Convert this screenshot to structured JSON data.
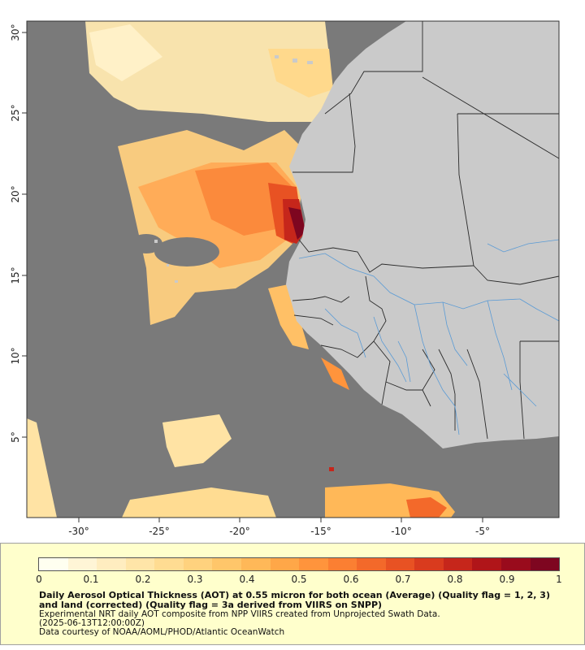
{
  "map": {
    "longitude_ticks": [
      "-30°",
      "-25°",
      "-20°",
      "-15°",
      "-10°",
      "-5°"
    ],
    "latitude_ticks": [
      "30°",
      "25°",
      "20°",
      "15°",
      "10°",
      "5°"
    ],
    "colors": {
      "ocean_no_data": "#7a7a7a",
      "land": "#cacaca",
      "border": "#2a2a2a",
      "river": "#5b9bd5"
    }
  },
  "legend": {
    "ticks": [
      "0",
      "0.1",
      "0.2",
      "0.3",
      "0.4",
      "0.5",
      "0.6",
      "0.7",
      "0.8",
      "0.9",
      "1"
    ],
    "colormap": [
      "#fffff0",
      "#fff5d6",
      "#ffedc0",
      "#ffe5a8",
      "#ffdc92",
      "#ffd27e",
      "#ffc66a",
      "#ffb858",
      "#ffa748",
      "#ff943c",
      "#fb7f32",
      "#f3692a",
      "#e85223",
      "#d93b1e",
      "#c6261b",
      "#b01519",
      "#990b1c",
      "#7e0620"
    ],
    "background": "#ffffcc"
  },
  "caption": {
    "title": "Daily Aerosol Optical Thickness (AOT) at 0.55 micron for both ocean (Average) (Quality flag = 1, 2, 3) and land (corrected) (Quality flag = 3a derived from VIIRS on SNPP)",
    "line1": "Experimental NRT daily AOT composite from NPP VIIRS created from Unprojected Swath Data.",
    "line2": "(2025-06-13T12:00:00Z)",
    "credit": "Data courtesy of NOAA/AOML/PHOD/Atlantic OceanWatch"
  }
}
